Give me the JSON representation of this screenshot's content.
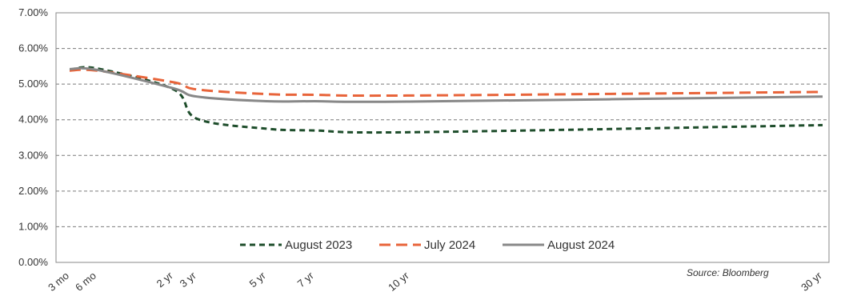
{
  "chart_data": {
    "type": "line",
    "title": "",
    "xlabel": "",
    "ylabel": "",
    "x_ticks": [
      {
        "label": "3 mo",
        "years": 0.25
      },
      {
        "label": "6 mo",
        "years": 0.5
      },
      {
        "label": "2 yr",
        "years": 2
      },
      {
        "label": "3 yr",
        "years": 3
      },
      {
        "label": "5 yr",
        "years": 5
      },
      {
        "label": "7 yr",
        "years": 7
      },
      {
        "label": "10 yr",
        "years": 10
      },
      {
        "label": "30 yr",
        "years": 30
      }
    ],
    "ylim": [
      0,
      7
    ],
    "y_ticks": [
      "0.00%",
      "1.00%",
      "2.00%",
      "3.00%",
      "4.00%",
      "5.00%",
      "6.00%",
      "7.00%"
    ],
    "grid": "horizontal dashed",
    "legend_position": "bottom-center inside plot",
    "series": [
      {
        "name": "August 2023",
        "color": "#1e4d2b",
        "style": "dashed-short",
        "values": [
          5.4,
          5.44,
          4.85,
          4.03,
          3.75,
          3.7,
          3.65,
          3.85
        ]
      },
      {
        "name": "July 2024",
        "color": "#e8643a",
        "style": "dashed-long",
        "values": [
          5.38,
          5.38,
          5.05,
          4.85,
          4.72,
          4.7,
          4.68,
          4.78
        ]
      },
      {
        "name": "August 2024",
        "color": "#888888",
        "style": "solid",
        "values": [
          5.42,
          5.4,
          4.88,
          4.65,
          4.52,
          4.52,
          4.51,
          4.65
        ]
      }
    ],
    "source": "Source: Bloomberg"
  }
}
